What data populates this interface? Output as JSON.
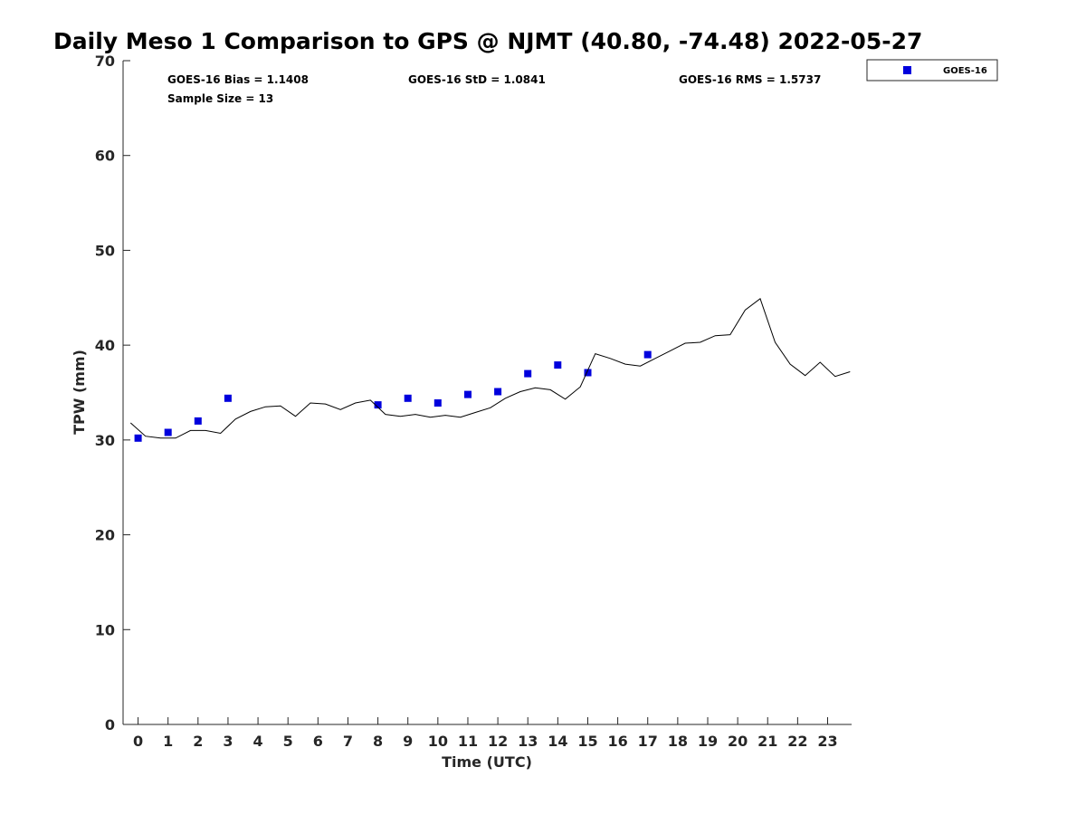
{
  "chart_data": {
    "type": "scatter",
    "title": "Daily Meso 1 Comparison to GPS @ NJMT (40.80, -74.48) 2022-05-27",
    "xlabel": "Time (UTC)",
    "ylabel": "TPW (mm)",
    "xlim": [
      -0.5,
      23.8
    ],
    "ylim": [
      0,
      70
    ],
    "xticks": [
      0,
      1,
      2,
      3,
      4,
      5,
      6,
      7,
      8,
      9,
      10,
      11,
      12,
      13,
      14,
      15,
      16,
      17,
      18,
      19,
      20,
      21,
      22,
      23
    ],
    "yticks": [
      0,
      10,
      20,
      30,
      40,
      50,
      60,
      70
    ],
    "grid": false,
    "legend_position": "outside-top-right",
    "stats": {
      "bias": "GOES-16 Bias = 1.1408",
      "std": "GOES-16 StD = 1.0841",
      "rms": "GOES-16 RMS = 1.5737",
      "sample_size": "Sample Size = 13"
    },
    "series": [
      {
        "name": "GOES-16",
        "kind": "scatter",
        "marker": "square",
        "color": "#0000dd",
        "x": [
          0.0,
          1.0,
          2.0,
          3.0,
          8.0,
          9.0,
          10.0,
          11.0,
          12.0,
          13.0,
          14.0,
          15.0,
          17.0
        ],
        "y": [
          30.2,
          30.8,
          32.0,
          34.4,
          33.7,
          34.4,
          33.9,
          34.8,
          35.1,
          37.0,
          37.9,
          37.1,
          39.0
        ]
      },
      {
        "kind": "line",
        "color": "#000000",
        "x": [
          -0.25,
          0.25,
          0.75,
          1.25,
          1.75,
          2.25,
          2.75,
          3.25,
          3.75,
          4.25,
          4.75,
          5.25,
          5.75,
          6.25,
          6.75,
          7.25,
          7.75,
          8.25,
          8.75,
          9.25,
          9.75,
          10.25,
          10.75,
          11.25,
          11.75,
          12.25,
          12.75,
          13.25,
          13.75,
          14.25,
          14.75,
          15.25,
          15.75,
          16.25,
          16.75,
          17.25,
          17.75,
          18.25,
          18.75,
          19.25,
          19.75,
          20.25,
          20.75,
          21.25,
          21.75,
          22.25,
          22.75,
          23.25,
          23.75
        ],
        "y": [
          31.8,
          30.4,
          30.2,
          30.2,
          31.0,
          31.0,
          30.7,
          32.2,
          33.0,
          33.5,
          33.6,
          32.5,
          33.9,
          33.8,
          33.2,
          33.9,
          34.2,
          32.7,
          32.5,
          32.7,
          32.4,
          32.6,
          32.4,
          32.9,
          33.4,
          34.4,
          35.1,
          35.5,
          35.3,
          34.3,
          35.6,
          39.1,
          38.6,
          38.0,
          37.8,
          38.6,
          39.4,
          40.2,
          40.3,
          41.0,
          41.1,
          43.7,
          44.9,
          40.3,
          38.0,
          36.8,
          38.2,
          36.7,
          37.2
        ]
      }
    ]
  }
}
